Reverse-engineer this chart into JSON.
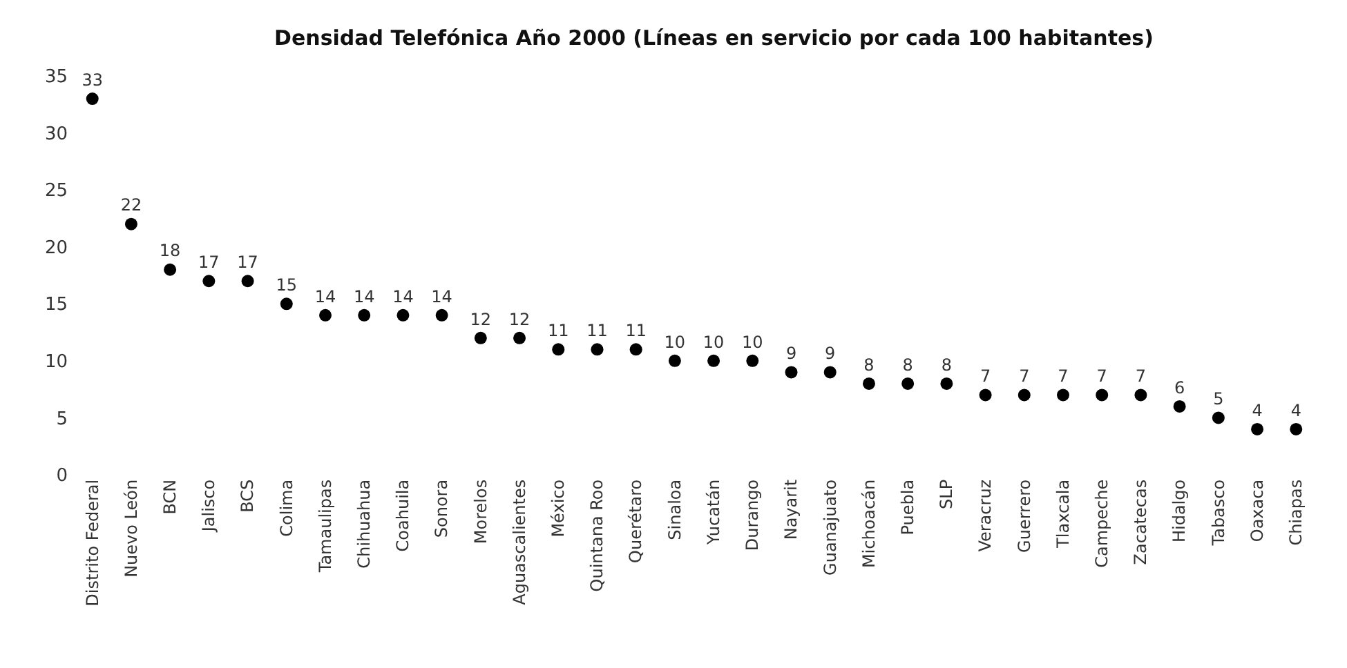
{
  "chart_data": {
    "type": "scatter",
    "title": "Densidad Telefónica Año 2000 (Líneas en servicio por cada 100 habitantes)",
    "categories": [
      "Distrito Federal",
      "Nuevo León",
      "BCN",
      "Jalisco",
      "BCS",
      "Colima",
      "Tamaulipas",
      "Chihuahua",
      "Coahuila",
      "Sonora",
      "Morelos",
      "Aguascalientes",
      "México",
      "Quintana Roo",
      "Querétaro",
      "Sinaloa",
      "Yucatán",
      "Durango",
      "Nayarit",
      "Guanajuato",
      "Michoacán",
      "Puebla",
      "SLP",
      "Veracruz",
      "Guerrero",
      "Tlaxcala",
      "Campeche",
      "Zacatecas",
      "Hidalgo",
      "Tabasco",
      "Oaxaca",
      "Chiapas"
    ],
    "values": [
      33,
      22,
      18,
      17,
      17,
      15,
      14,
      14,
      14,
      14,
      12,
      12,
      11,
      11,
      11,
      10,
      10,
      10,
      9,
      9,
      8,
      8,
      8,
      7,
      7,
      7,
      7,
      7,
      6,
      5,
      4,
      4
    ],
    "color": "#000000",
    "marker": "circle",
    "data_labels": true,
    "grid": false,
    "legend": false,
    "ylim": [
      0,
      35
    ],
    "yticks": [
      0,
      5,
      10,
      15,
      20,
      25,
      30,
      35
    ]
  }
}
